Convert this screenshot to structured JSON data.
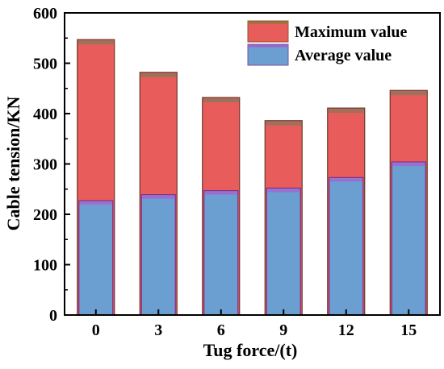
{
  "chart_data": {
    "type": "bar",
    "xlabel": "Tug force/(t)",
    "ylabel": "Cable tension/KN",
    "categories": [
      "0",
      "3",
      "6",
      "9",
      "12",
      "15"
    ],
    "ylim": [
      0,
      600
    ],
    "yticks": [
      "0",
      "100",
      "200",
      "300",
      "400",
      "500",
      "600"
    ],
    "series": [
      {
        "name": "Maximum value",
        "values": [
          547,
          482,
          432,
          386,
          411,
          446
        ],
        "color": "#e85c5c"
      },
      {
        "name": "Average value",
        "values": [
          227,
          239,
          247,
          252,
          273,
          304
        ],
        "color": "#6c9fd1"
      }
    ],
    "legend_position": "top-right",
    "grid": false
  }
}
